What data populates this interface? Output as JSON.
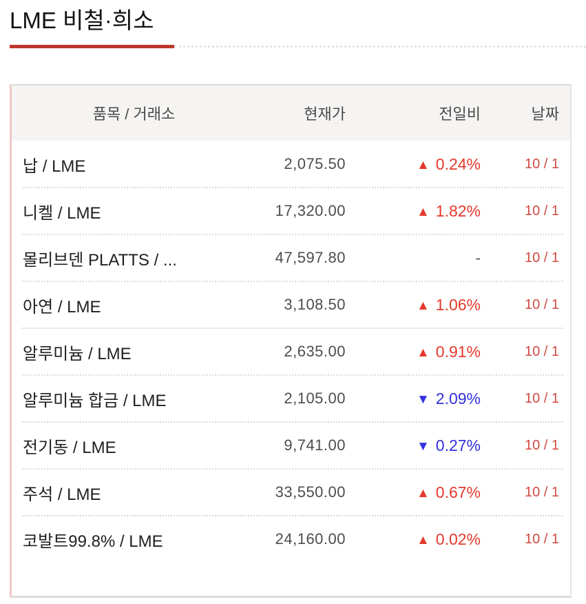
{
  "page": {
    "title": "LME 비철·희소"
  },
  "colors": {
    "accent_underline": "#bc392c",
    "up": "#e5392d",
    "down": "#3431de",
    "date": "#ce4a44"
  },
  "table": {
    "up_symbol": "▲",
    "down_symbol": "▼",
    "columns": [
      {
        "key": "item",
        "label": "품목 / 거래소"
      },
      {
        "key": "price",
        "label": "현재가"
      },
      {
        "key": "change",
        "label": "전일비"
      },
      {
        "key": "date",
        "label": "날짜"
      }
    ],
    "rows": [
      {
        "item": "납 / LME",
        "price": "2,075.50",
        "direction": "up",
        "change": "0.24%",
        "date": "10 / 1"
      },
      {
        "item": "니켈 / LME",
        "price": "17,320.00",
        "direction": "up",
        "change": "1.82%",
        "date": "10 / 1"
      },
      {
        "item": "몰리브덴 PLATTS / ...",
        "price": "47,597.80",
        "direction": "flat",
        "change": "-",
        "date": "10 / 1"
      },
      {
        "item": "아연 / LME",
        "price": "3,108.50",
        "direction": "up",
        "change": "1.06%",
        "date": "10 / 1"
      },
      {
        "item": "알루미늄 / LME",
        "price": "2,635.00",
        "direction": "up",
        "change": "0.91%",
        "date": "10 / 1"
      },
      {
        "item": "알루미늄 합금 / LME",
        "price": "2,105.00",
        "direction": "down",
        "change": "2.09%",
        "date": "10 / 1"
      },
      {
        "item": "전기동 / LME",
        "price": "9,741.00",
        "direction": "down",
        "change": "0.27%",
        "date": "10 / 1"
      },
      {
        "item": "주석 / LME",
        "price": "33,550.00",
        "direction": "up",
        "change": "0.67%",
        "date": "10 / 1"
      },
      {
        "item": "코발트99.8% / LME",
        "price": "24,160.00",
        "direction": "up",
        "change": "0.02%",
        "date": "10 / 1"
      }
    ]
  }
}
